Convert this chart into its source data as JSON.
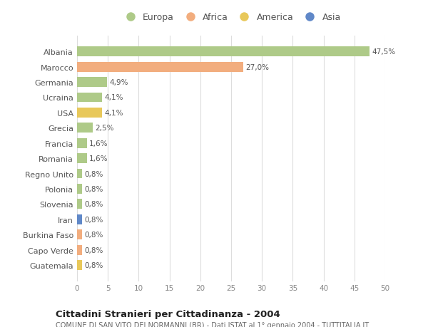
{
  "countries": [
    "Albania",
    "Marocco",
    "Germania",
    "Ucraina",
    "USA",
    "Grecia",
    "Francia",
    "Romania",
    "Regno Unito",
    "Polonia",
    "Slovenia",
    "Iran",
    "Burkina Faso",
    "Capo Verde",
    "Guatemala"
  ],
  "values": [
    47.5,
    27.0,
    4.9,
    4.1,
    4.1,
    2.5,
    1.6,
    1.6,
    0.8,
    0.8,
    0.8,
    0.8,
    0.8,
    0.8,
    0.8
  ],
  "labels": [
    "47,5%",
    "27,0%",
    "4,9%",
    "4,1%",
    "4,1%",
    "2,5%",
    "1,6%",
    "1,6%",
    "0,8%",
    "0,8%",
    "0,8%",
    "0,8%",
    "0,8%",
    "0,8%",
    "0,8%"
  ],
  "colors": [
    "#aeca88",
    "#f2ad7e",
    "#aeca88",
    "#aeca88",
    "#e8c85a",
    "#aeca88",
    "#aeca88",
    "#aeca88",
    "#aeca88",
    "#aeca88",
    "#aeca88",
    "#6088c8",
    "#f2ad7e",
    "#f2ad7e",
    "#e8c85a"
  ],
  "legend_labels": [
    "Europa",
    "Africa",
    "America",
    "Asia"
  ],
  "legend_colors": [
    "#aeca88",
    "#f2ad7e",
    "#e8c85a",
    "#6088c8"
  ],
  "title": "Cittadini Stranieri per Cittadinanza - 2004",
  "subtitle": "COMUNE DI SAN VITO DEI NORMANNI (BR) - Dati ISTAT al 1° gennaio 2004 - TUTTITALIA.IT",
  "xlim": [
    0,
    50
  ],
  "xticks": [
    0,
    5,
    10,
    15,
    20,
    25,
    30,
    35,
    40,
    45,
    50
  ],
  "bg_color": "#ffffff",
  "plot_bg": "#f7f7f7",
  "grid_color": "#dddddd"
}
